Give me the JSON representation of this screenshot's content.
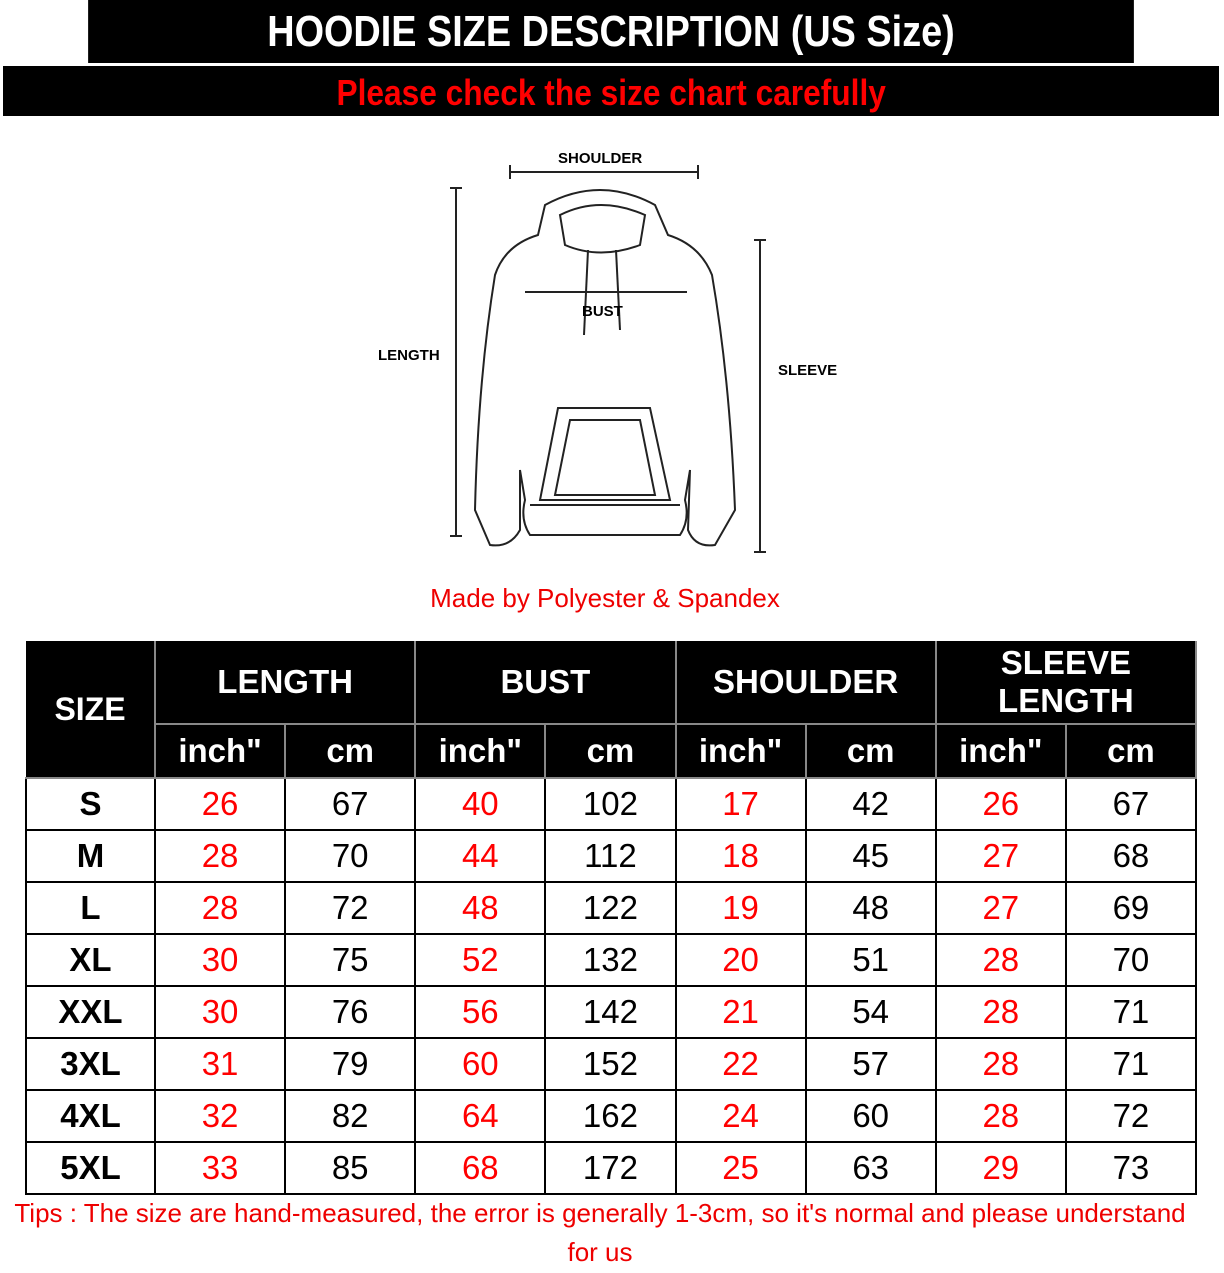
{
  "header": {
    "title": "HOODIE SIZE DESCRIPTION (US Size)",
    "subtitle": "Please check the size chart carefully"
  },
  "diagram": {
    "shoulder": "SHOULDER",
    "bust": "BUST",
    "length": "LENGTH",
    "sleeve": "SLEEVE"
  },
  "material": "Made by Polyester & Spandex",
  "table": {
    "size_header": "SIZE",
    "groups": [
      "LENGTH",
      "BUST",
      "SHOULDER",
      "SLEEVE LENGTH"
    ],
    "units": [
      "inch\"",
      "cm"
    ],
    "rows": [
      [
        "S",
        "26",
        "67",
        "40",
        "102",
        "17",
        "42",
        "26",
        "67"
      ],
      [
        "M",
        "28",
        "70",
        "44",
        "112",
        "18",
        "45",
        "27",
        "68"
      ],
      [
        "L",
        "28",
        "72",
        "48",
        "122",
        "19",
        "48",
        "27",
        "69"
      ],
      [
        "XL",
        "30",
        "75",
        "52",
        "132",
        "20",
        "51",
        "28",
        "70"
      ],
      [
        "XXL",
        "30",
        "76",
        "56",
        "142",
        "21",
        "54",
        "28",
        "71"
      ],
      [
        "3XL",
        "31",
        "79",
        "60",
        "152",
        "22",
        "57",
        "28",
        "71"
      ],
      [
        "4XL",
        "32",
        "82",
        "64",
        "162",
        "24",
        "60",
        "28",
        "72"
      ],
      [
        "5XL",
        "33",
        "85",
        "68",
        "172",
        "25",
        "63",
        "29",
        "73"
      ]
    ]
  },
  "tips": "Tips : The size are hand-measured, the error is generally 1-3cm, so it's normal and please understand for us",
  "colors": {
    "accent": "#ff0000",
    "banner": "#000000"
  }
}
